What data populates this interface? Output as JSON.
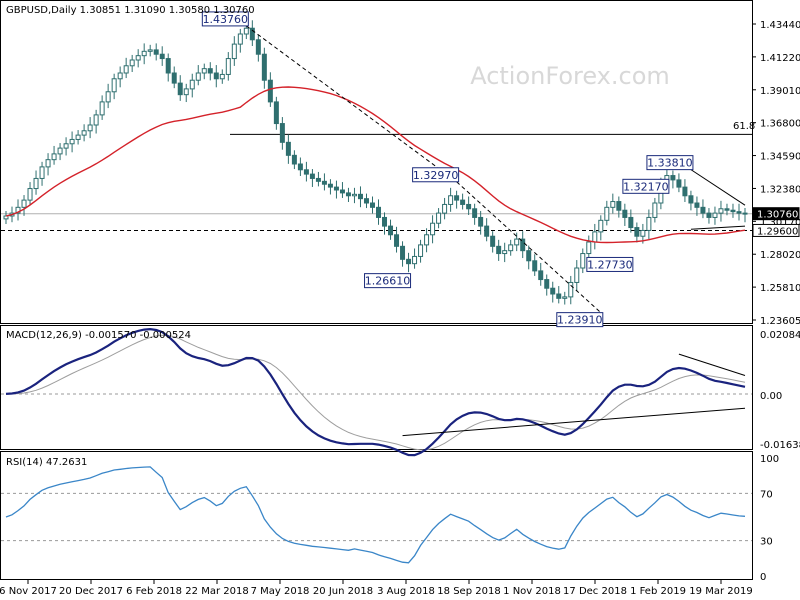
{
  "chart_data": [
    {
      "type": "candlestick",
      "header": "GBPUSD,Daily  1.30851 1.31090 1.30580 1.30760",
      "watermark": "ActionForex.com",
      "ylim": [
        1.234,
        1.45
      ],
      "y_ticks": [
        "1.43440",
        "1.41220",
        "1.39010",
        "1.36800",
        "1.34590",
        "1.32380",
        "1.30170",
        "1.28020",
        "1.25810",
        "1.23605"
      ],
      "last_price_label": "1.30760",
      "support_label": "1.29600",
      "fib_label": "61.8",
      "fib_level": 1.3625,
      "support_level": 1.296,
      "close": [
        1.306,
        1.308,
        1.312,
        1.317,
        1.325,
        1.332,
        1.34,
        1.345,
        1.349,
        1.353,
        1.356,
        1.359,
        1.362,
        1.365,
        1.369,
        1.376,
        1.385,
        1.392,
        1.401,
        1.405,
        1.41,
        1.414,
        1.417,
        1.42,
        1.421,
        1.418,
        1.415,
        1.405,
        1.398,
        1.39,
        1.394,
        1.4,
        1.405,
        1.408,
        1.405,
        1.401,
        1.404,
        1.415,
        1.425,
        1.432,
        1.436,
        1.428,
        1.418,
        1.4,
        1.385,
        1.37,
        1.357,
        1.348,
        1.342,
        1.338,
        1.335,
        1.332,
        1.33,
        1.328,
        1.326,
        1.324,
        1.322,
        1.32,
        1.321,
        1.318,
        1.315,
        1.312,
        1.305,
        1.299,
        1.293,
        1.285,
        1.276,
        1.273,
        1.278,
        1.286,
        1.293,
        1.301,
        1.308,
        1.314,
        1.32,
        1.317,
        1.314,
        1.311,
        1.305,
        1.299,
        1.292,
        1.285,
        1.28,
        1.282,
        1.286,
        1.29,
        1.282,
        1.275,
        1.268,
        1.262,
        1.256,
        1.252,
        1.249,
        1.25,
        1.26,
        1.27,
        1.28,
        1.288,
        1.295,
        1.303,
        1.312,
        1.316,
        1.31,
        1.305,
        1.298,
        1.292,
        1.296,
        1.305,
        1.315,
        1.328,
        1.334,
        1.331,
        1.326,
        1.32,
        1.315,
        1.312,
        1.308,
        1.305,
        1.308,
        1.311,
        1.31,
        1.309,
        1.308,
        1.3076
      ],
      "ma_period": 40,
      "labels": [
        {
          "text": "1.43760",
          "i": 40,
          "price": 1.4376
        },
        {
          "text": "1.32970",
          "i": 75,
          "price": 1.3297
        },
        {
          "text": "1.26610",
          "i": 67,
          "price": 1.2661
        },
        {
          "text": "1.32170",
          "i": 110,
          "price": 1.3217
        },
        {
          "text": "1.33810",
          "i": 114,
          "price": 1.3381
        },
        {
          "text": "1.27730",
          "i": 104,
          "price": 1.2773
        },
        {
          "text": "1.23910",
          "i": 99,
          "price": 1.2391
        }
      ]
    },
    {
      "type": "line",
      "header": "MACD(12,26,9) -0.001570 -0.000524",
      "ylim": [
        -0.0175,
        0.0215
      ],
      "y_ticks": [
        "0.020848",
        "0.00",
        "-0.016389"
      ],
      "zero_label": "0.00"
    },
    {
      "type": "line",
      "header": "RSI(14) 47.2631",
      "ylim": [
        0,
        100
      ],
      "y_ticks": [
        "100",
        "70",
        "30",
        "0"
      ],
      "levels": [
        70,
        30
      ]
    }
  ],
  "x_ticks": [
    "6 Nov 2017",
    "20 Dec 2017",
    "6 Feb 2018",
    "22 Mar 2018",
    "7 May 2018",
    "20 Jun 2018",
    "3 Aug 2018",
    "18 Sep 2018",
    "1 Nov 2018",
    "17 Dec 2018",
    "1 Feb 2019",
    "19 Mar 2019"
  ],
  "colors": {
    "bull": "#2f6f6f",
    "bear": "#2f6f6f",
    "ma": "#d4222a",
    "macd": "#1a237e",
    "signal": "#9e9e9e",
    "rsi": "#3a86c8"
  }
}
